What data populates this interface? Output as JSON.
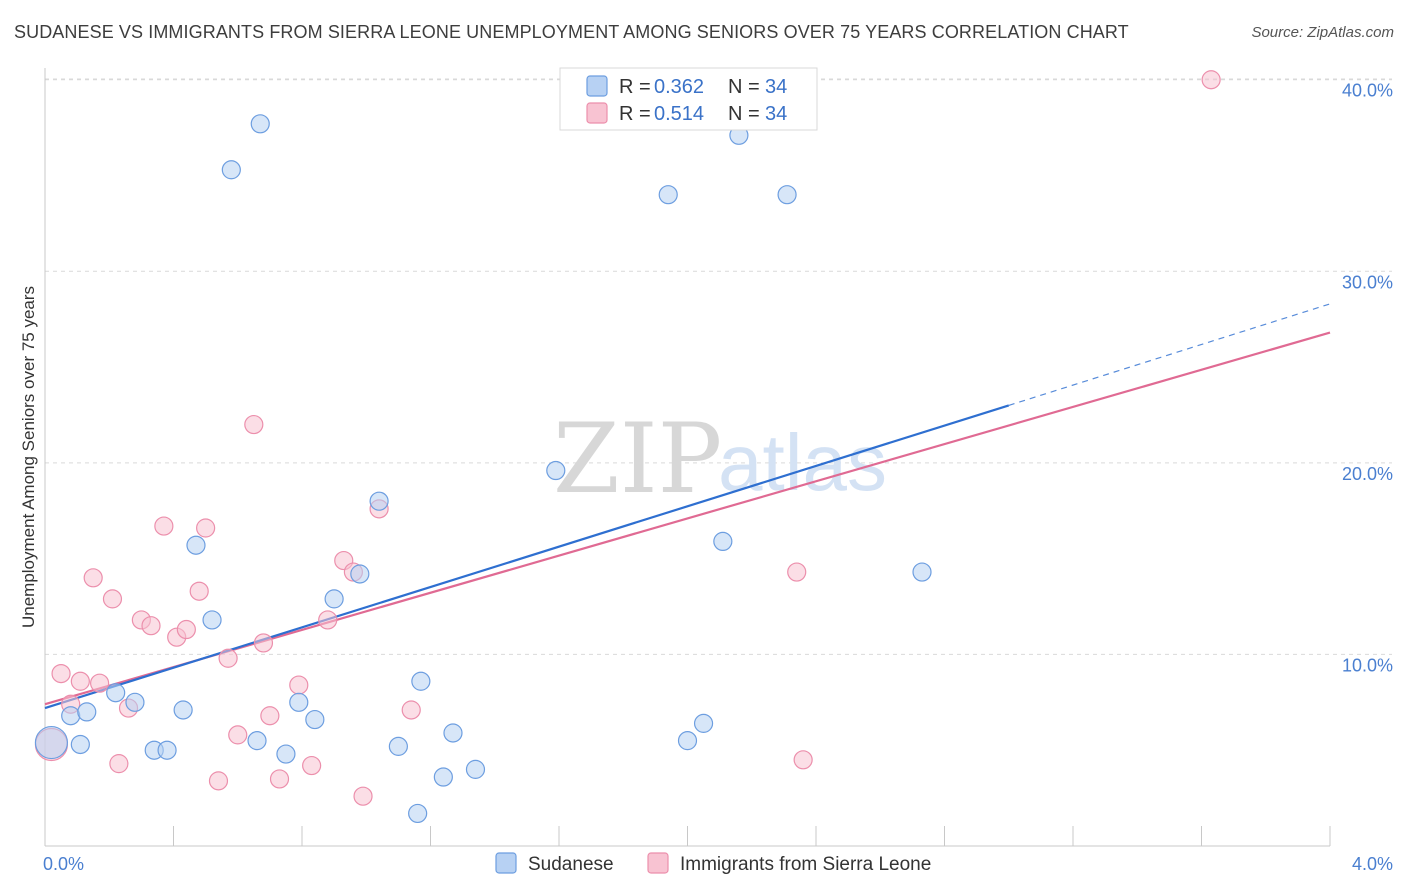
{
  "header": {
    "title": "SUDANESE VS IMMIGRANTS FROM SIERRA LEONE UNEMPLOYMENT AMONG SENIORS OVER 75 YEARS CORRELATION CHART",
    "source": "Source: ZipAtlas.com"
  },
  "watermark": {
    "zip": "ZIP",
    "atlas": "atlas"
  },
  "colors": {
    "sudanese_fill": "#b7d1f3",
    "sudanese_stroke": "#6d9ee0",
    "sudanese_line": "#2e6fd0",
    "sierra_fill": "#f8c3d2",
    "sierra_stroke": "#ec8fac",
    "sierra_line": "#e06a93",
    "grid": "#d9d9d9",
    "axis_text": "#4a7fd0"
  },
  "legend": {
    "rows": [
      {
        "r_label": "R =",
        "r_value": "0.362",
        "n_label": "N =",
        "n_value": "34"
      },
      {
        "r_label": "R =",
        "r_value": "0.514",
        "n_label": "N =",
        "n_value": "34"
      }
    ]
  },
  "chart_data": {
    "type": "scatter",
    "title": "SUDANESE VS IMMIGRANTS FROM SIERRA LEONE UNEMPLOYMENT AMONG SENIORS OVER 75 YEARS CORRELATION CHART",
    "xlabel": "",
    "ylabel": "Unemployment Among Seniors over 75 years",
    "xlim": [
      0,
      4.0
    ],
    "ylim": [
      0,
      41.5
    ],
    "x_tick_labels": [
      "0.0%",
      "4.0%"
    ],
    "y_ticks": [
      10,
      20,
      30,
      40
    ],
    "y_tick_labels": [
      "10.0%",
      "20.0%",
      "30.0%",
      "40.0%"
    ],
    "grid": true,
    "legend_position": "bottom",
    "series": [
      {
        "name": "Sudanese",
        "r": 0.362,
        "n": 34,
        "points": [
          [
            0.02,
            5.4
          ],
          [
            0.08,
            6.8
          ],
          [
            0.13,
            7.0
          ],
          [
            0.22,
            8.0
          ],
          [
            0.28,
            7.5
          ],
          [
            0.34,
            5.0
          ],
          [
            0.38,
            5.0
          ],
          [
            0.43,
            7.1
          ],
          [
            0.47,
            15.7
          ],
          [
            0.52,
            11.8
          ],
          [
            0.58,
            35.3
          ],
          [
            0.66,
            5.5
          ],
          [
            0.67,
            37.7
          ],
          [
            0.75,
            4.8
          ],
          [
            0.79,
            7.5
          ],
          [
            0.84,
            6.6
          ],
          [
            0.9,
            12.9
          ],
          [
            0.98,
            14.2
          ],
          [
            1.04,
            18.0
          ],
          [
            1.1,
            5.2
          ],
          [
            1.17,
            8.6
          ],
          [
            1.16,
            1.7
          ],
          [
            1.24,
            3.6
          ],
          [
            1.27,
            5.9
          ],
          [
            1.34,
            4.0
          ],
          [
            1.59,
            19.6
          ],
          [
            1.94,
            34.0
          ],
          [
            2.05,
            6.4
          ],
          [
            2.0,
            5.5
          ],
          [
            2.11,
            15.9
          ],
          [
            2.16,
            37.1
          ],
          [
            2.31,
            34.0
          ],
          [
            2.73,
            14.3
          ],
          [
            0.11,
            5.3
          ]
        ]
      },
      {
        "name": "Immigrants from Sierra Leone",
        "r": 0.514,
        "n": 34,
        "points": [
          [
            0.02,
            5.3
          ],
          [
            0.05,
            9.0
          ],
          [
            0.08,
            7.4
          ],
          [
            0.11,
            8.6
          ],
          [
            0.15,
            14.0
          ],
          [
            0.17,
            8.5
          ],
          [
            0.21,
            12.9
          ],
          [
            0.23,
            4.3
          ],
          [
            0.26,
            7.2
          ],
          [
            0.3,
            11.8
          ],
          [
            0.33,
            11.5
          ],
          [
            0.37,
            16.7
          ],
          [
            0.41,
            10.9
          ],
          [
            0.44,
            11.3
          ],
          [
            0.48,
            13.3
          ],
          [
            0.5,
            16.6
          ],
          [
            0.54,
            3.4
          ],
          [
            0.57,
            9.8
          ],
          [
            0.6,
            5.8
          ],
          [
            0.65,
            22.0
          ],
          [
            0.68,
            10.6
          ],
          [
            0.7,
            6.8
          ],
          [
            0.73,
            3.5
          ],
          [
            0.79,
            8.4
          ],
          [
            0.83,
            4.2
          ],
          [
            0.88,
            11.8
          ],
          [
            0.93,
            14.9
          ],
          [
            0.96,
            14.3
          ],
          [
            0.99,
            2.6
          ],
          [
            1.04,
            17.6
          ],
          [
            1.14,
            7.1
          ],
          [
            2.34,
            14.3
          ],
          [
            2.36,
            4.5
          ],
          [
            3.63,
            40.0
          ]
        ]
      }
    ],
    "trendlines": [
      {
        "series": "Sudanese",
        "x": [
          0,
          3.0
        ],
        "y": [
          7.2,
          23.0
        ],
        "dashed_extension_x": [
          3.0,
          4.0
        ],
        "dashed_extension_y": [
          23.0,
          28.3
        ]
      },
      {
        "series": "Immigrants from Sierra Leone",
        "x": [
          0,
          4.0
        ],
        "y": [
          7.4,
          26.8
        ]
      }
    ]
  },
  "bottom_legend": {
    "items": [
      {
        "label": "Sudanese"
      },
      {
        "label": "Immigrants from Sierra Leone"
      }
    ]
  }
}
